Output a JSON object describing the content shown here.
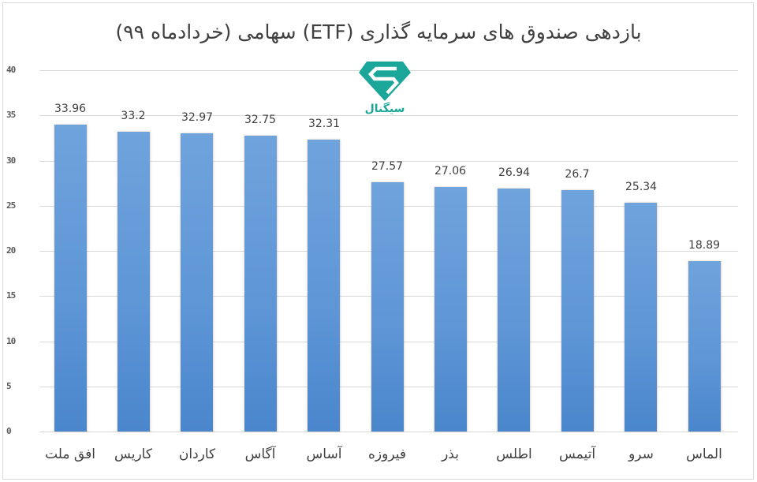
{
  "chart_data": {
    "type": "bar",
    "title": "بازدهی صندوق های سرمایه گذاری (ETF) سهامی (خردادماه ۹۹)",
    "xlabel": "",
    "ylabel": "",
    "ylim": [
      0,
      40
    ],
    "yticks": [
      "0",
      "5",
      "10",
      "15",
      "20",
      "25",
      "30",
      "35",
      "40"
    ],
    "grid": true,
    "legend": null,
    "categories": [
      "افق ملت",
      "کاریس",
      "کاردان",
      "آگاس",
      "آساس",
      "فیروزه",
      "بذر",
      "اطلس",
      "آتیمس",
      "سرو",
      "الماس"
    ],
    "values": [
      33.96,
      33.2,
      32.97,
      32.75,
      32.31,
      27.57,
      27.06,
      26.94,
      26.7,
      25.34,
      18.89
    ],
    "value_labels": [
      "33.96",
      "33.2",
      "32.97",
      "32.75",
      "32.31",
      "27.57",
      "27.06",
      "26.94",
      "26.7",
      "25.34",
      "18.89"
    ],
    "bar_color": "#5b9bd5"
  },
  "watermark": {
    "brand_text": "سیگنال",
    "icon": "diamond-s-logo-icon",
    "color": "#1aa79a"
  }
}
